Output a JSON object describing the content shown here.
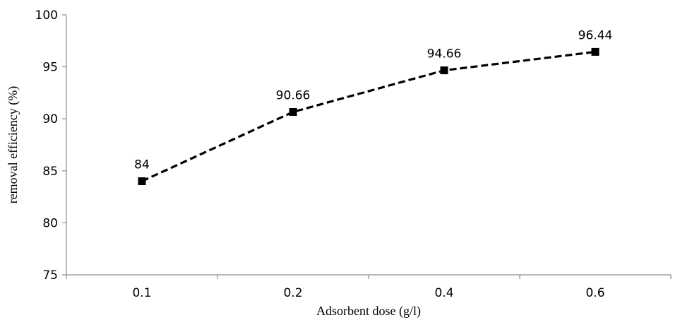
{
  "chart_data": {
    "type": "line",
    "title": "",
    "xlabel": "Adsorbent dose (g/l)",
    "ylabel": "removal efficiency (%)",
    "categories": [
      "0.1",
      "0.2",
      "0.4",
      "0.6"
    ],
    "series": [
      {
        "values": [
          84,
          90.66,
          94.66,
          96.44
        ],
        "data_labels": [
          "84",
          "90.66",
          "94.66",
          "96.44"
        ],
        "line_style": "dashed",
        "marker": "square",
        "color": "#000000"
      }
    ],
    "ylim": [
      75,
      100
    ],
    "yticks": [
      "75",
      "80",
      "85",
      "90",
      "95",
      "100"
    ],
    "grid": false,
    "legend": "none"
  }
}
